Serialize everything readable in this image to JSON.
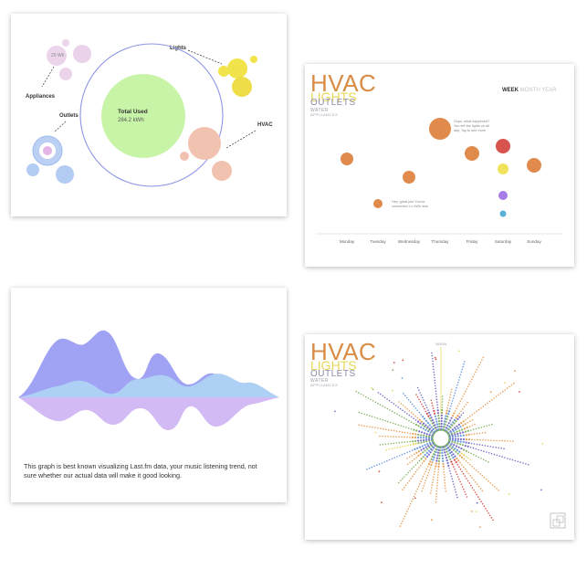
{
  "bubble": {
    "kwh_label": "20 Wh",
    "appliances": "Appliances",
    "lights": "Lights",
    "outlets": "Outlets",
    "hvac": "HVAC",
    "total_title": "Total Used",
    "total_value": "284.2 kWh"
  },
  "weekly": {
    "title_hvac": "HVAC",
    "title_lights": "LIGHTS",
    "title_outlets": "OUTLETS",
    "title_water": "WATER",
    "title_appliances": "APPLIANCES",
    "tab_week": "WEEK",
    "tab_rest": "MONTH YEAR",
    "days": [
      "Monday",
      "Tuesday",
      "Wednesday",
      "Thursday",
      "Friday",
      "Saturday",
      "Sunday"
    ],
    "note_1": [
      "Oops, what happened?",
      "You left the lights on all",
      "day. Tap to see more"
    ],
    "note_2": [
      "Hey, great job! You've",
      "conserved x.x kWh less"
    ],
    "colors": {
      "hvac": "#e08a4c",
      "red": "#d9534f",
      "lights": "#f0e25a",
      "outlets": "#a77ee8",
      "water": "#5ab0d8"
    }
  },
  "stream": {
    "caption": "This graph is best known visualizing Last.fm data, your music listening trend, not sure whether our actual data will make it good looking.",
    "colors": {
      "top": "#9a9cf2",
      "middle": "#a8c8f2",
      "bottom": "#cdb4f2"
    }
  },
  "radial": {
    "title_hvac": "HVAC",
    "title_lights": "LIGHTS",
    "title_outlets": "OUTLETS",
    "title_water": "WATER",
    "title_appliances": "APPLIANCES",
    "top_label": "NOON"
  }
}
